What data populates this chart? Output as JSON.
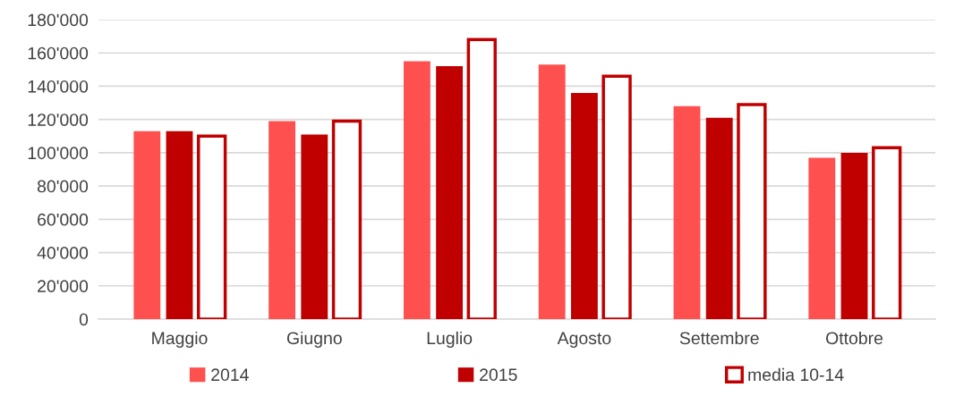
{
  "chart_data": {
    "type": "bar",
    "categories": [
      "Maggio",
      "Giugno",
      "Luglio",
      "Agosto",
      "Settembre",
      "Ottobre"
    ],
    "series": [
      {
        "name": "2014",
        "color": "#ff5050",
        "values": [
          113000,
          119000,
          155000,
          153000,
          128000,
          97000
        ]
      },
      {
        "name": "2015",
        "color": "#c00000",
        "values": [
          113000,
          111000,
          152000,
          136000,
          121000,
          100000
        ]
      },
      {
        "name": "media 10-14",
        "color": "#c00000",
        "values": [
          110000,
          119000,
          168000,
          146000,
          129000,
          103000
        ]
      }
    ],
    "ylim": [
      0,
      180000
    ],
    "yticks": [
      0,
      {
        "value": 20000,
        "label": "20'000"
      },
      {
        "value": 40000,
        "label": "40'000"
      },
      {
        "value": 60000,
        "label": "60'000"
      },
      {
        "value": 80000,
        "label": "80'000"
      },
      {
        "value": 100000,
        "label": "100'000"
      },
      {
        "value": 120000,
        "label": "120'000"
      },
      {
        "value": 140000,
        "label": "140'000"
      },
      {
        "value": 160000,
        "label": "160'000"
      },
      {
        "value": 180000,
        "label": "180'000"
      }
    ],
    "grid": "y",
    "legend": "bottom"
  }
}
